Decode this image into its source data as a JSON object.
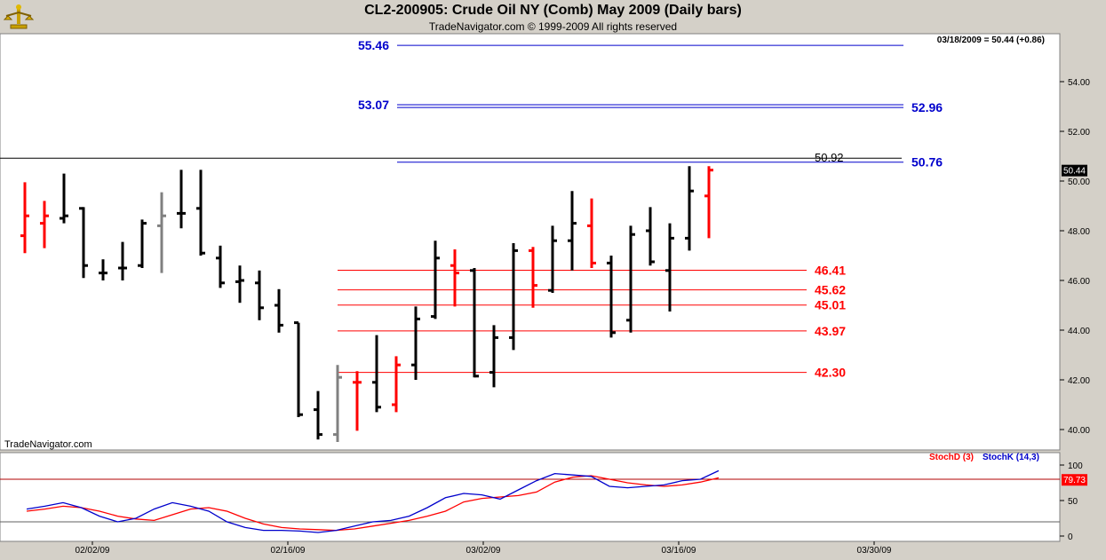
{
  "header": {
    "title": "CL2-200905:  Crude Oil NY (Comb) May 2009  (Daily bars)",
    "copyright": "TradeNavigator.com © 1999-2009 All rights reserved"
  },
  "colors": {
    "up_bar": "#000000",
    "down_bar": "#ff0000",
    "neutral_bar": "#808080",
    "resistance": "#0000cc",
    "support": "#ff0000",
    "stochD": "#ff0000",
    "stochK": "#0000cc"
  },
  "chart_data": [
    {
      "type": "bar",
      "subtype": "ohlc",
      "title": "CL2-200905:  Crude Oil NY (Comb) May 2009  (Daily bars)",
      "info_label": "03/18/2009 = 50.44 (+0.86)",
      "watermark": "TradeNavigator.com",
      "last_price_label": "50.44",
      "ylim": [
        39.2,
        55.8
      ],
      "y_ticks": [
        "40.00",
        "42.00",
        "44.00",
        "46.00",
        "48.00",
        "50.00",
        "52.00",
        "54.00"
      ],
      "x_tick_labels": [
        "02/02/09",
        "02/16/09",
        "03/02/09",
        "03/16/09",
        "03/30/09"
      ],
      "bars": [
        {
          "o": 47.8,
          "h": 49.95,
          "l": 47.1,
          "c": 48.6,
          "color": "red"
        },
        {
          "o": 48.3,
          "h": 49.2,
          "l": 47.3,
          "c": 48.6,
          "color": "red"
        },
        {
          "o": 48.5,
          "h": 50.3,
          "l": 48.3,
          "c": 48.6,
          "color": "black"
        },
        {
          "o": 48.9,
          "h": 48.95,
          "l": 46.1,
          "c": 46.6,
          "color": "black"
        },
        {
          "o": 46.3,
          "h": 46.85,
          "l": 46.0,
          "c": 46.3,
          "color": "black"
        },
        {
          "o": 46.5,
          "h": 47.55,
          "l": 46.0,
          "c": 46.5,
          "color": "black"
        },
        {
          "o": 46.6,
          "h": 48.45,
          "l": 46.5,
          "c": 48.3,
          "color": "black"
        },
        {
          "o": 48.2,
          "h": 49.55,
          "l": 46.3,
          "c": 48.6,
          "color": "gray"
        },
        {
          "o": 48.7,
          "h": 50.45,
          "l": 48.1,
          "c": 48.7,
          "color": "black"
        },
        {
          "o": 48.9,
          "h": 50.45,
          "l": 47.0,
          "c": 47.1,
          "color": "black"
        },
        {
          "o": 46.9,
          "h": 47.4,
          "l": 45.7,
          "c": 45.9,
          "color": "black"
        },
        {
          "o": 45.95,
          "h": 46.6,
          "l": 45.1,
          "c": 46.0,
          "color": "black"
        },
        {
          "o": 45.9,
          "h": 46.4,
          "l": 44.4,
          "c": 44.9,
          "color": "black"
        },
        {
          "o": 45.0,
          "h": 45.65,
          "l": 43.9,
          "c": 44.2,
          "color": "black"
        },
        {
          "o": 44.3,
          "h": 44.3,
          "l": 40.5,
          "c": 40.6,
          "color": "black"
        },
        {
          "o": 40.8,
          "h": 41.55,
          "l": 39.6,
          "c": 39.8,
          "color": "black"
        },
        {
          "o": 39.8,
          "h": 42.6,
          "l": 39.5,
          "c": 42.1,
          "color": "gray"
        },
        {
          "o": 41.9,
          "h": 42.35,
          "l": 39.95,
          "c": 41.9,
          "color": "red"
        },
        {
          "o": 41.9,
          "h": 43.8,
          "l": 40.7,
          "c": 40.9,
          "color": "black"
        },
        {
          "o": 41.0,
          "h": 42.95,
          "l": 40.7,
          "c": 42.6,
          "color": "red"
        },
        {
          "o": 42.6,
          "h": 44.95,
          "l": 42.0,
          "c": 44.45,
          "color": "black"
        },
        {
          "o": 44.55,
          "h": 47.6,
          "l": 44.45,
          "c": 46.9,
          "color": "black"
        },
        {
          "o": 46.6,
          "h": 47.25,
          "l": 44.95,
          "c": 46.3,
          "color": "red"
        },
        {
          "o": 46.4,
          "h": 46.5,
          "l": 42.1,
          "c": 42.15,
          "color": "black"
        },
        {
          "o": 42.3,
          "h": 44.2,
          "l": 41.7,
          "c": 43.7,
          "color": "black"
        },
        {
          "o": 43.7,
          "h": 47.5,
          "l": 43.2,
          "c": 47.2,
          "color": "black"
        },
        {
          "o": 47.2,
          "h": 47.35,
          "l": 44.9,
          "c": 45.8,
          "color": "red"
        },
        {
          "o": 45.6,
          "h": 48.2,
          "l": 45.5,
          "c": 47.6,
          "color": "black"
        },
        {
          "o": 47.6,
          "h": 49.6,
          "l": 46.4,
          "c": 48.3,
          "color": "black"
        },
        {
          "o": 48.2,
          "h": 49.3,
          "l": 46.5,
          "c": 46.7,
          "color": "red"
        },
        {
          "o": 46.7,
          "h": 47.0,
          "l": 43.7,
          "c": 43.9,
          "color": "black"
        },
        {
          "o": 44.4,
          "h": 48.2,
          "l": 43.9,
          "c": 47.85,
          "color": "black"
        },
        {
          "o": 48.0,
          "h": 48.95,
          "l": 46.6,
          "c": 46.75,
          "color": "black"
        },
        {
          "o": 46.4,
          "h": 48.3,
          "l": 44.75,
          "c": 47.7,
          "color": "black"
        },
        {
          "o": 47.7,
          "h": 50.6,
          "l": 47.2,
          "c": 49.6,
          "color": "black"
        },
        {
          "o": 49.4,
          "h": 50.6,
          "l": 47.7,
          "c": 50.44,
          "color": "red"
        }
      ],
      "resistance_lines": [
        {
          "label": "55.46",
          "value": 55.46,
          "side": "left"
        },
        {
          "label": "53.07",
          "value": 53.07,
          "side": "left"
        },
        {
          "label": "52.96",
          "value": 52.96,
          "side": "right"
        },
        {
          "label": "50.76",
          "value": 50.76,
          "side": "right"
        }
      ],
      "black_line": {
        "label": "50.92",
        "value": 50.92
      },
      "support_lines": [
        {
          "label": "46.41",
          "value": 46.41
        },
        {
          "label": "45.62",
          "value": 45.62
        },
        {
          "label": "45.01",
          "value": 45.01
        },
        {
          "label": "43.97",
          "value": 43.97
        },
        {
          "label": "42.30",
          "value": 42.3
        }
      ]
    },
    {
      "type": "line",
      "ylim": [
        -5,
        105
      ],
      "y_ticks": [
        "0",
        "50",
        "100"
      ],
      "reference_lines": [
        20,
        80
      ],
      "last_value_label": "79.73",
      "series": [
        {
          "name": "StochD (3)",
          "color": "#ff0000",
          "values": [
            35,
            38,
            42,
            40,
            35,
            28,
            24,
            22,
            30,
            38,
            40,
            35,
            25,
            17,
            12,
            10,
            9,
            8,
            10,
            14,
            18,
            22,
            28,
            35,
            48,
            53,
            55,
            57,
            62,
            76,
            83,
            85,
            80,
            75,
            72,
            70,
            72,
            76,
            82
          ]
        },
        {
          "name": "StochK (14,3)",
          "color": "#0000cc",
          "values": [
            38,
            42,
            47,
            40,
            28,
            20,
            25,
            38,
            47,
            42,
            35,
            20,
            12,
            8,
            8,
            7,
            5,
            8,
            14,
            20,
            22,
            28,
            40,
            54,
            60,
            58,
            52,
            65,
            78,
            88,
            86,
            84,
            70,
            68,
            70,
            72,
            78,
            80,
            92
          ]
        }
      ]
    }
  ]
}
